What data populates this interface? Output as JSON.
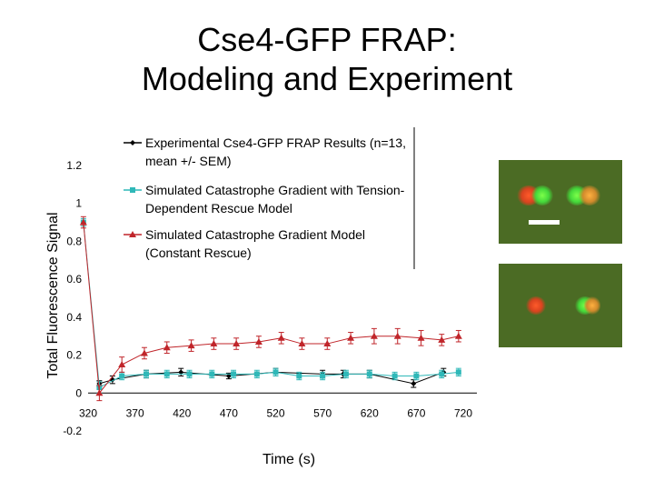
{
  "slide": {
    "title_line1": "Cse4-GFP FRAP:",
    "title_line2": "Modeling and Experiment"
  },
  "images": {
    "top": {
      "description_icon": "microscopy-image-icon"
    },
    "bottom": {
      "description_icon": "microscopy-image-icon"
    }
  },
  "chart_data": {
    "type": "line",
    "xlabel": "Time (s)",
    "ylabel": "Total Fluorescence Signal",
    "xlim": [
      320,
      720
    ],
    "ylim": [
      -0.2,
      1.2
    ],
    "x_ticks": [
      "320",
      "370",
      "420",
      "470",
      "520",
      "570",
      "620",
      "670",
      "720"
    ],
    "y_ticks": [
      "1.2",
      "1",
      "0.8",
      "0.6",
      "0.4",
      "0.2",
      "0",
      "-0.2"
    ],
    "legend_position": "top-right",
    "series": [
      {
        "name": "Experimental Cse4-GFP FRAP Results (n=13, mean +/- SEM)",
        "legend_lines": [
          "Experimental Cse4-GFP FRAP Results (n=13,",
          "mean +/- SEM)"
        ],
        "color": "#000000",
        "marker": "diamond",
        "x": [
          332,
          346,
          382,
          419,
          470,
          520,
          570,
          592,
          620,
          667,
          699
        ],
        "y": [
          0.05,
          0.07,
          0.1,
          0.11,
          0.09,
          0.11,
          0.1,
          0.1,
          0.1,
          0.05,
          0.11
        ],
        "err": [
          0.015,
          0.02,
          0.02,
          0.02,
          0.015,
          0.02,
          0.02,
          0.02,
          0.02,
          0.02,
          0.02
        ]
      },
      {
        "name": "Simulated Catastrophe Gradient with Tension-Dependent Rescue Model",
        "legend_lines": [
          "Simulated  Catastrophe Gradient with Tension-",
          "Dependent Rescue Model"
        ],
        "color": "#2fb8b8",
        "marker": "square",
        "x": [
          315,
          332,
          356,
          382,
          404,
          428,
          452,
          475,
          500,
          520,
          545,
          570,
          595,
          620,
          647,
          670,
          697,
          715
        ],
        "y": [
          0.9,
          0.03,
          0.09,
          0.1,
          0.1,
          0.1,
          0.1,
          0.1,
          0.1,
          0.11,
          0.09,
          0.09,
          0.1,
          0.1,
          0.09,
          0.09,
          0.1,
          0.11
        ],
        "err": [
          0.02,
          0.03,
          0.02,
          0.02,
          0.02,
          0.02,
          0.02,
          0.02,
          0.02,
          0.02,
          0.02,
          0.02,
          0.02,
          0.02,
          0.02,
          0.02,
          0.02,
          0.02
        ]
      },
      {
        "name": "Simulated Catastrophe Gradient Model (Constant Rescue)",
        "legend_lines": [
          "Simulated Catastrophe Gradient  Model",
          "(Constant Rescue)"
        ],
        "color": "#c0252a",
        "marker": "triangle",
        "x": [
          315,
          332,
          356,
          380,
          404,
          430,
          454,
          478,
          502,
          526,
          548,
          575,
          600,
          625,
          650,
          675,
          697,
          715
        ],
        "y": [
          0.9,
          0.0,
          0.15,
          0.21,
          0.24,
          0.25,
          0.26,
          0.26,
          0.27,
          0.29,
          0.26,
          0.26,
          0.29,
          0.3,
          0.3,
          0.29,
          0.28,
          0.3
        ],
        "err": [
          0.03,
          0.04,
          0.04,
          0.03,
          0.03,
          0.03,
          0.03,
          0.03,
          0.03,
          0.03,
          0.03,
          0.03,
          0.03,
          0.04,
          0.04,
          0.04,
          0.03,
          0.03
        ]
      }
    ]
  }
}
